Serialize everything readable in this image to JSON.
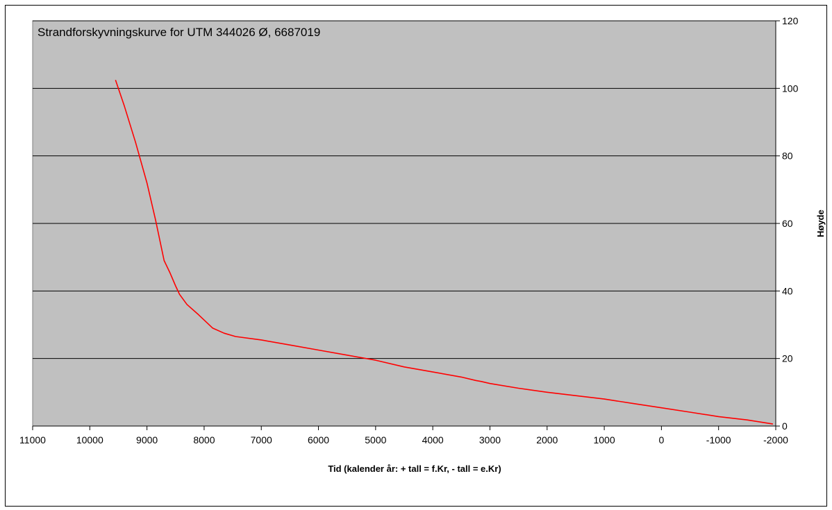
{
  "chart_data": {
    "type": "line",
    "title": "Strandforskyvningskurve for UTM 344026 Ø, 6687019",
    "xlabel": "Tid (kalender år:  + tall = f.Kr, - tall = e.Kr)",
    "ylabel": "Høyde",
    "xlim": [
      11000,
      -2000
    ],
    "ylim": [
      0,
      120
    ],
    "x_ticks": [
      11000,
      10000,
      9000,
      8000,
      7000,
      6000,
      5000,
      4000,
      3000,
      2000,
      1000,
      0,
      -1000,
      -2000
    ],
    "y_ticks": [
      0,
      20,
      40,
      60,
      80,
      100,
      120
    ],
    "y_axis_side": "right",
    "grid": "horizontal",
    "plot_background": "#c0c0c0",
    "series": [
      {
        "color": "#ff0000",
        "x": [
          9550,
          9400,
          9200,
          9000,
          8850,
          8700,
          8600,
          8500,
          8430,
          8300,
          8100,
          7850,
          7650,
          7450,
          7000,
          6500,
          6000,
          5500,
          5000,
          4500,
          4000,
          3500,
          3250,
          3150,
          3000,
          2500,
          2000,
          1500,
          1000,
          500,
          0,
          -500,
          -1000,
          -1500,
          -1950
        ],
        "y": [
          102.5,
          95,
          84,
          72,
          61,
          49,
          45.5,
          41.5,
          39,
          36,
          33,
          29,
          27.5,
          26.5,
          25.5,
          24,
          22.5,
          21,
          19.5,
          17.5,
          16,
          14.5,
          13.5,
          13.2,
          12.6,
          11.2,
          10,
          9,
          8,
          6.7,
          5.4,
          4.1,
          2.8,
          1.8,
          0.6
        ]
      }
    ]
  }
}
